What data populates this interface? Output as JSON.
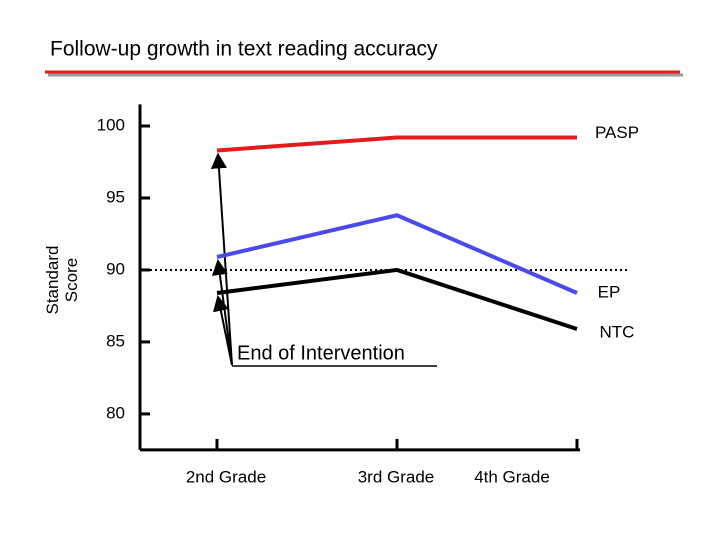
{
  "chart_data": {
    "type": "line",
    "title": "Follow-up growth in text reading accuracy",
    "y_label": "Standard Score",
    "categories": [
      "2nd Grade",
      "3rd Grade",
      "4th Grade"
    ],
    "series": [
      {
        "name": "PASP",
        "color": "#e31b1b",
        "values": [
          98.3,
          99.2,
          99.2
        ]
      },
      {
        "name": "EP",
        "color": "#4a4aea",
        "values": [
          90.9,
          93.8,
          88.4
        ]
      },
      {
        "name": "NTC",
        "color": "#000000",
        "values": [
          88.4,
          90,
          85.9
        ]
      }
    ],
    "ylim": [
      77.5,
      101.5
    ],
    "yticks": [
      80,
      85,
      90,
      95,
      100
    ],
    "reference_line": 90,
    "annotation": "End of Intervention"
  }
}
